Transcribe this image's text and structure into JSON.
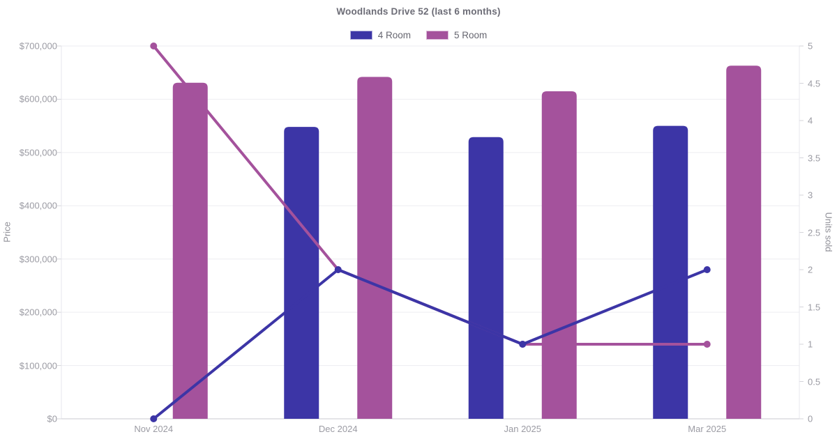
{
  "title": "Woodlands Drive 52 (last 6 months)",
  "legend": {
    "position": "top",
    "items": [
      {
        "label": "4 Room",
        "color": "#3c35a6"
      },
      {
        "label": "5 Room",
        "color": "#a4529c"
      }
    ]
  },
  "chart_data": {
    "type": "bar",
    "subtype": "combo-bar-line-dual-axis",
    "title": "Woodlands Drive 52 (last 6 months)",
    "categories": [
      "Nov 2024",
      "Dec 2024",
      "Jan 2025",
      "Mar 2025"
    ],
    "bar_series": [
      {
        "name": "4 Room",
        "axis": "left",
        "color": "#3c35a6",
        "values": [
          null,
          548000,
          529000,
          550000
        ]
      },
      {
        "name": "5 Room",
        "axis": "left",
        "color": "#a4529c",
        "values": [
          631000,
          642000,
          615000,
          663000
        ]
      }
    ],
    "line_series": [
      {
        "name": "5 Room",
        "axis": "right",
        "color": "#a4529c",
        "values": [
          5,
          2,
          1,
          1
        ]
      },
      {
        "name": "4 Room",
        "axis": "right",
        "color": "#3c35a6",
        "values": [
          0,
          2,
          1,
          2
        ]
      }
    ],
    "left_axis": {
      "label": "Price",
      "min": 0,
      "max": 700000,
      "step": 100000,
      "tick_prefix": "$"
    },
    "right_axis": {
      "label": "Units sold",
      "min": 0,
      "max": 5,
      "step": 0.5
    },
    "grid": "horizontal",
    "legend_position": "top",
    "colors": {
      "grid": "#ededf1",
      "axis_line": "#d4d4da",
      "boundary": "#e7e7ec",
      "tick_text": "#9b9ba3"
    }
  }
}
